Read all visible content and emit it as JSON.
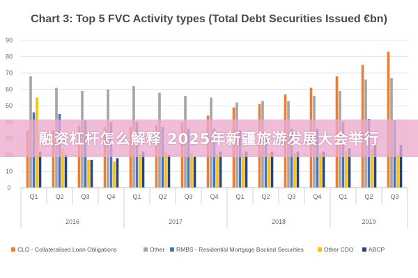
{
  "chart_data": {
    "type": "bar",
    "title": "Chart 3: Top 5 FVC Activity types (Total Debt Securities Issued €bn)",
    "xlabel": "",
    "ylabel": "",
    "ylim": [
      0,
      90
    ],
    "yticks": [
      0,
      10,
      20,
      30,
      40,
      50,
      60,
      70,
      80,
      90
    ],
    "grid": true,
    "legend_position": "bottom",
    "categories": [
      "Q1",
      "Q2",
      "Q3",
      "Q4",
      "Q1",
      "Q2",
      "Q3",
      "Q4",
      "Q1",
      "Q2",
      "Q3",
      "Q4",
      "Q1",
      "Q2",
      "Q3"
    ],
    "groups": [
      {
        "label": "2016",
        "count": 4
      },
      {
        "label": "2017",
        "count": 4
      },
      {
        "label": "2018",
        "count": 4
      },
      {
        "label": "2019",
        "count": 3
      }
    ],
    "series": [
      {
        "name": "CLO - Collateralised Loan Obligations",
        "color": "#ed7d31",
        "values": [
          35,
          35,
          38,
          37,
          37,
          38,
          40,
          44,
          49,
          51,
          57,
          61,
          68,
          75,
          83
        ]
      },
      {
        "name": "Other",
        "color": "#a5a5a5",
        "values": [
          68,
          61,
          59,
          60,
          62,
          58,
          56,
          55,
          52,
          53,
          53,
          56,
          59,
          66,
          67
        ]
      },
      {
        "name": "RMBS - Residential Mortgage Backed Securities",
        "color": "#4472c4",
        "values": [
          46,
          45,
          41,
          40,
          40,
          37,
          36,
          36,
          35,
          33,
          36,
          36,
          40,
          42,
          41
        ]
      },
      {
        "name": "Other CDO",
        "color": "#ffc000",
        "values": [
          55,
          24,
          17,
          16,
          20,
          22,
          21,
          20,
          21,
          21,
          21,
          21,
          22,
          24,
          20
        ]
      },
      {
        "name": "ABCP",
        "color": "#264478",
        "values": [
          22,
          20,
          17,
          18,
          22,
          20,
          19,
          22,
          22,
          22,
          22,
          22,
          24,
          27,
          26
        ]
      }
    ]
  },
  "banner": {
    "text": "融资杠杆怎么解释 2025年新疆旅游发展大会举行"
  }
}
